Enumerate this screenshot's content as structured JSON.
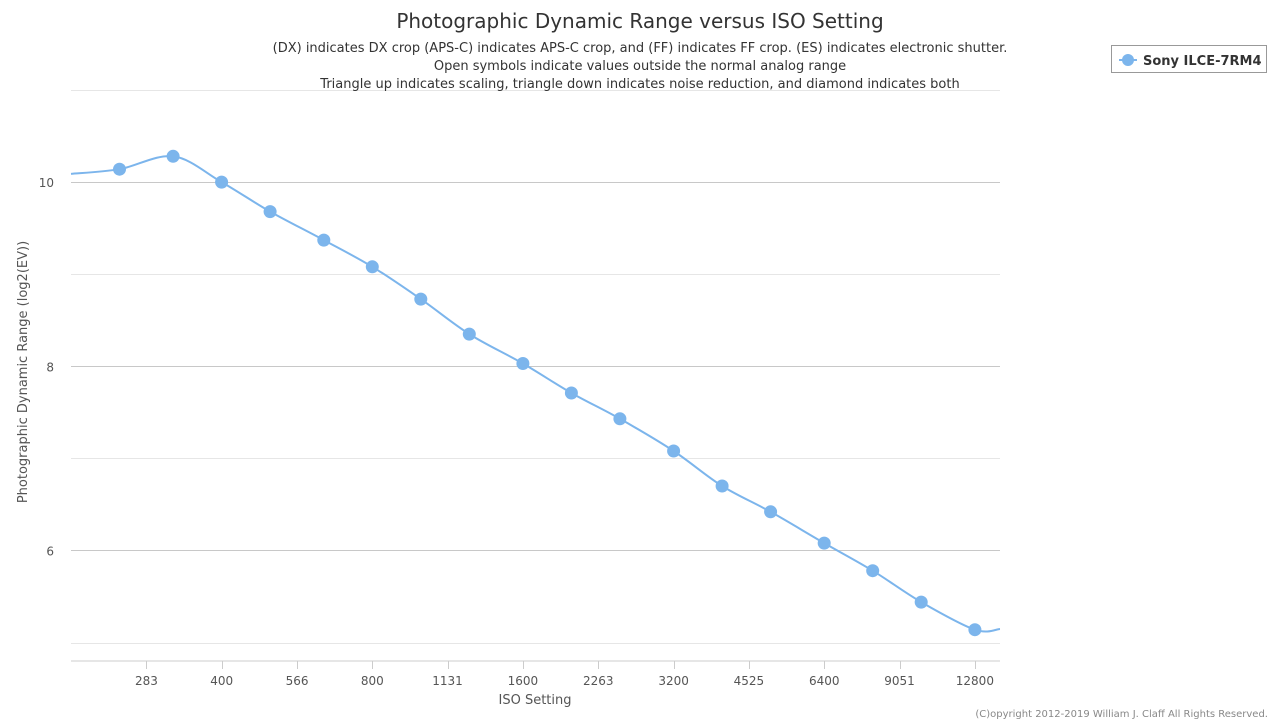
{
  "chart_data": {
    "type": "line",
    "title": "Photographic Dynamic Range versus ISO Setting",
    "subtitle": [
      "(DX) indicates DX crop (APS-C) indicates APS-C crop, and (FF) indicates FF crop. (ES) indicates electronic shutter.",
      "Open symbols indicate values outside the normal analog range",
      "Triangle up indicates scaling, triangle down indicates noise reduction, and diamond indicates both"
    ],
    "xlabel": "ISO Setting",
    "ylabel": "Photographic Dynamic Range (log2(EV))",
    "x_scale": "log2",
    "xlim": [
      200,
      14368
    ],
    "ylim": [
      4.8,
      11
    ],
    "x_ticks": [
      283,
      400,
      566,
      800,
      1131,
      1600,
      2263,
      3200,
      4525,
      6400,
      9051,
      12800
    ],
    "y_ticks": [
      6,
      8,
      10
    ],
    "y_gridlines": [
      5,
      6,
      7,
      8,
      9,
      10,
      11
    ],
    "grid": true,
    "legend_position": "top-right",
    "series": [
      {
        "name": "Sony ILCE-7RM4",
        "color": "#7cb5ec",
        "x": [
          250,
          320,
          400,
          500,
          640,
          800,
          1000,
          1250,
          1600,
          2000,
          2500,
          3200,
          4000,
          5000,
          6400,
          8000,
          10000,
          12800
        ],
        "y": [
          10.14,
          10.28,
          10.0,
          9.68,
          9.37,
          9.08,
          8.73,
          8.35,
          8.03,
          7.71,
          7.43,
          7.08,
          6.7,
          6.42,
          6.08,
          5.78,
          5.44,
          5.14
        ]
      }
    ],
    "credits": "(C)opyright 2012-2019 William J. Claff All Rights Reserved."
  }
}
